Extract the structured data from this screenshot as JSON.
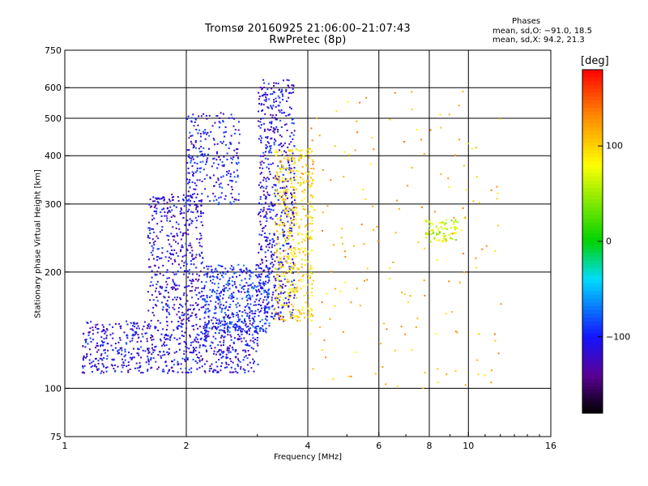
{
  "header": {
    "title": "Tromsø 20160925 21:06:00–21:07:43",
    "subtitle": "RwPretec (8p)"
  },
  "stats": {
    "heading": "Phases",
    "o_line": "mean, sd,O: −91.0, 18.5",
    "x_line": "mean, sd,X:  94.2, 21.3"
  },
  "colorbar": {
    "label": "[deg]",
    "ticks": [
      {
        "value": 100,
        "label": "100"
      },
      {
        "value": 0,
        "label": "0"
      },
      {
        "value": -100,
        "label": "−100"
      }
    ],
    "range": [
      -180,
      180
    ],
    "scale": "rainbow: black → purple → blue → cyan → green → yellow → orange → red"
  },
  "chart_data": {
    "type": "scatter",
    "title": "Tromsø 20160925 21:06:00–21:07:43",
    "subtitle": "RwPretec (8p)",
    "xlabel": "Frequency [MHz]",
    "ylabel": "Stationary phase Virtual Height [km]",
    "xscale": "log",
    "yscale": "log",
    "xlim": [
      1,
      16
    ],
    "ylim": [
      75,
      750
    ],
    "xticks": [
      1,
      2,
      4,
      6,
      8,
      10,
      16
    ],
    "xtick_labels": [
      "1",
      "2",
      "4",
      "6",
      "8",
      "10",
      "16"
    ],
    "yticks": [
      75,
      100,
      200,
      300,
      400,
      500,
      600,
      750
    ],
    "ytick_labels": [
      "75",
      "100",
      "200",
      "300",
      "400",
      "500",
      "600",
      "750"
    ],
    "vertical_gridlines": [
      2,
      4,
      6,
      8,
      10
    ],
    "horizontal_gridlines": [
      100,
      200,
      300,
      400,
      500,
      600
    ],
    "color_encodes": "phase [deg]",
    "legend": "colorbar right",
    "clusters": [
      {
        "name": "O-trace lower ledge",
        "x_range": [
          1.1,
          3.0
        ],
        "y_range": [
          110,
          150
        ],
        "phase_deg": -110,
        "count": 700
      },
      {
        "name": "O-trace F-layer rise",
        "x_range": [
          1.6,
          2.2
        ],
        "y_range": [
          150,
          320
        ],
        "phase_deg": -115,
        "count": 450
      },
      {
        "name": "O-trace mid band",
        "x_range": [
          2.2,
          3.2
        ],
        "y_range": [
          140,
          210
        ],
        "phase_deg": -95,
        "count": 450
      },
      {
        "name": "O-trace upper band",
        "x_range": [
          2.0,
          2.7
        ],
        "y_range": [
          300,
          520
        ],
        "phase_deg": -105,
        "count": 250
      },
      {
        "name": "O-trace cusp",
        "x_range": [
          3.0,
          3.7
        ],
        "y_range": [
          150,
          640
        ],
        "phase_deg": -110,
        "count": 600
      },
      {
        "name": "X-trace",
        "x_range": [
          3.3,
          4.1
        ],
        "y_range": [
          150,
          420
        ],
        "phase_deg": 95,
        "count": 450
      },
      {
        "name": "Sparse echoes",
        "x_range": [
          4.0,
          12.0
        ],
        "y_range": [
          100,
          600
        ],
        "phase_deg": 110,
        "count": 180
      },
      {
        "name": "Cluster near 8.5 MHz",
        "x_range": [
          7.8,
          9.4
        ],
        "y_range": [
          240,
          275
        ],
        "phase_deg": 60,
        "count": 80
      }
    ]
  }
}
